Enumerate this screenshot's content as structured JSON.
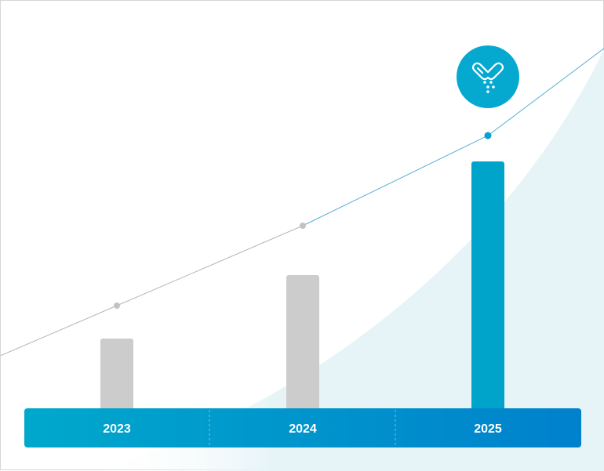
{
  "chart_data": {
    "type": "bar",
    "categories": [
      "2023",
      "2024",
      "2025"
    ],
    "values": [
      89,
      170,
      315
    ],
    "trend_values": [
      131,
      233,
      348
    ],
    "highlight_index": 2,
    "ylim": [
      0,
      460
    ],
    "grid": false,
    "legend": "none",
    "title": "",
    "xlabel": "",
    "ylabel": ""
  },
  "marker_icon": "pills-icon",
  "colors": {
    "bar_default": "#cccccc",
    "bar_highlight": "#00a3c9",
    "trend_line": "#5aaed3",
    "trend_line_early": "#b5b5b5",
    "point_default": "#c3c3c3",
    "point_highlight": "#0a9fd0",
    "axis_band_start": "#00a8cc",
    "axis_band_end": "#0081cc",
    "area_fill": "#e6f4f8",
    "icon_circle": "#05a8cf"
  }
}
